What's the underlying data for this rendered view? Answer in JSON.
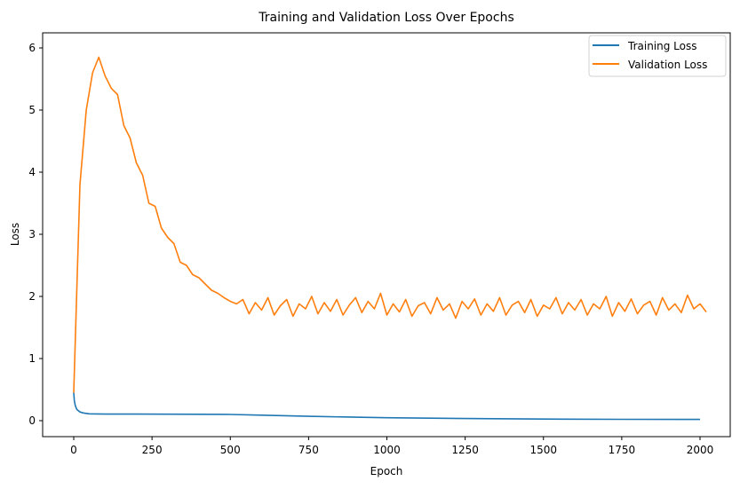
{
  "chart_data": {
    "type": "line",
    "title": "Training and Validation Loss Over Epochs",
    "xlabel": "Epoch",
    "ylabel": "Loss",
    "xlim": [
      -100,
      2100
    ],
    "ylim": [
      -0.27,
      6.3
    ],
    "xticks": [
      0,
      250,
      500,
      750,
      1000,
      1250,
      1500,
      1750,
      2000
    ],
    "yticks": [
      0,
      1,
      2,
      3,
      4,
      5,
      6
    ],
    "grid": false,
    "legend_position": "top-right",
    "series": [
      {
        "name": "Training Loss",
        "color": "#1f77b4",
        "x": [
          0,
          2,
          5,
          10,
          20,
          30,
          50,
          100,
          200,
          300,
          400,
          500,
          600,
          750,
          900,
          1000,
          1250,
          1500,
          1750,
          2000
        ],
        "y": [
          0.45,
          0.32,
          0.24,
          0.18,
          0.14,
          0.125,
          0.11,
          0.105,
          0.105,
          0.104,
          0.103,
          0.1,
          0.088,
          0.07,
          0.055,
          0.047,
          0.034,
          0.026,
          0.022,
          0.02
        ]
      },
      {
        "name": "Validation Loss",
        "color": "#ff7f0e",
        "x_step": 20,
        "y": [
          0.45,
          3.8,
          5.0,
          5.6,
          5.85,
          5.55,
          5.35,
          5.25,
          4.75,
          4.55,
          4.15,
          3.95,
          3.5,
          3.45,
          3.1,
          2.95,
          2.85,
          2.55,
          2.5,
          2.35,
          2.3,
          2.2,
          2.1,
          2.05,
          1.98,
          1.92,
          1.88,
          1.95,
          1.72,
          1.9,
          1.78,
          1.98,
          1.7,
          1.85,
          1.95,
          1.68,
          1.88,
          1.8,
          2.0,
          1.72,
          1.9,
          1.76,
          1.95,
          1.7,
          1.86,
          1.98,
          1.74,
          1.92,
          1.8,
          2.05,
          1.7,
          1.88,
          1.75,
          1.95,
          1.68,
          1.85,
          1.9,
          1.72,
          1.98,
          1.78,
          1.88,
          1.65,
          1.92,
          1.8,
          1.96,
          1.7,
          1.88,
          1.76,
          1.98,
          1.7,
          1.86,
          1.92,
          1.74,
          1.95,
          1.68,
          1.86,
          1.8,
          1.98,
          1.72,
          1.9,
          1.78,
          1.95,
          1.7,
          1.88,
          1.8,
          2.0,
          1.68,
          1.9,
          1.76,
          1.96,
          1.72,
          1.86,
          1.92,
          1.7,
          1.98,
          1.78,
          1.88,
          1.74,
          2.02,
          1.8,
          1.88,
          1.75
        ]
      }
    ]
  }
}
